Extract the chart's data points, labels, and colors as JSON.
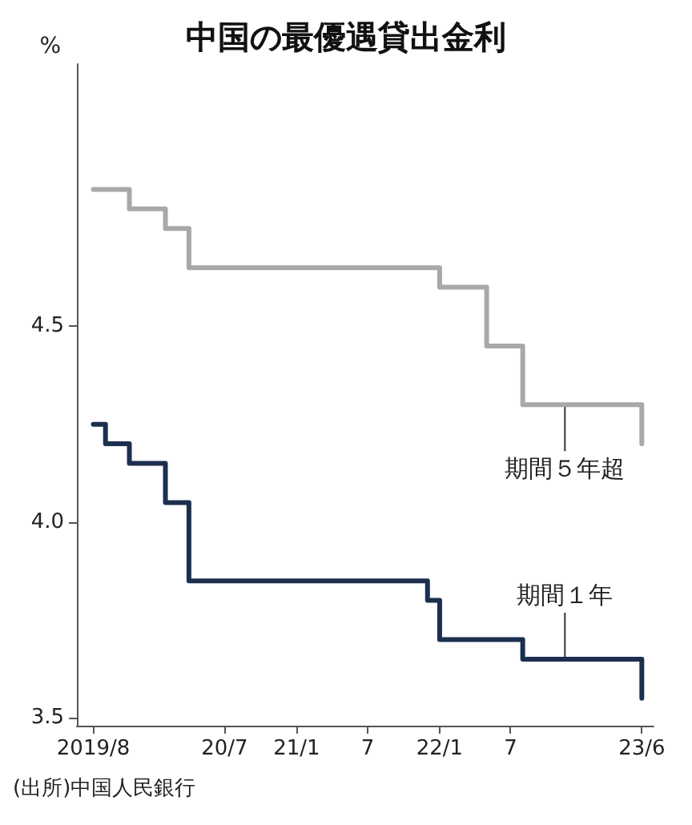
{
  "chart_data": {
    "type": "step",
    "title": "中国の最優遇貸出金利",
    "ylabel": "%",
    "annotations": [
      "(出所)中国人民銀行"
    ],
    "series": [
      {
        "name": "期間５年超",
        "color": "#a8a8a8",
        "x": [
          "2019-08",
          "2019-11",
          "2020-02",
          "2020-04",
          "2022-01",
          "2022-05",
          "2022-08",
          "2023-06"
        ],
        "values": [
          4.85,
          4.8,
          4.75,
          4.65,
          4.6,
          4.45,
          4.3,
          4.2
        ]
      },
      {
        "name": "期間１年",
        "color": "#1c2f4f",
        "x": [
          "2019-08",
          "2019-09",
          "2019-11",
          "2020-02",
          "2020-04",
          "2021-12",
          "2022-01",
          "2022-08",
          "2023-06"
        ],
        "values": [
          4.25,
          4.2,
          4.15,
          4.05,
          3.85,
          3.8,
          3.7,
          3.65,
          3.55
        ]
      }
    ],
    "xlim": [
      "2019-06-20",
      "2023-07-01"
    ],
    "xticks": [
      {
        "value": "2019-08",
        "label": "2019/8"
      },
      {
        "value": "2020-07",
        "label": "20/7"
      },
      {
        "value": "2021-01",
        "label": "21/1"
      },
      {
        "value": "2021-07",
        "label": "7"
      },
      {
        "value": "2022-01",
        "label": "22/1"
      },
      {
        "value": "2022-07",
        "label": "7"
      },
      {
        "value": "2023-06",
        "label": "23/6"
      }
    ],
    "ylim": [
      3.48,
      5.17
    ],
    "yticks": [
      3.5,
      {
        "value": 4,
        "label": "4.0"
      },
      4.5
    ],
    "grid": false,
    "legend": false,
    "line_style": "solid",
    "marker": "none"
  }
}
